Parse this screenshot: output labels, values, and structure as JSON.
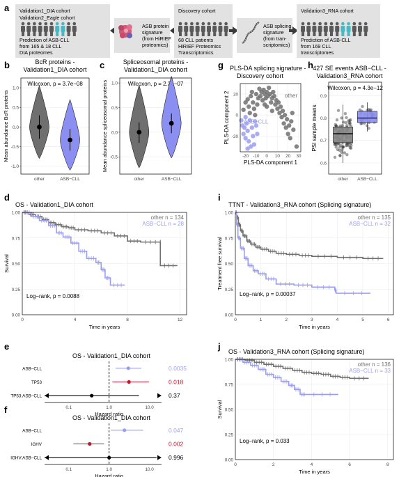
{
  "panel_letters": [
    "a",
    "b",
    "c",
    "d",
    "e",
    "f",
    "g",
    "h",
    "i",
    "j"
  ],
  "colors": {
    "asb": "#9b9ef0",
    "other": "#707070",
    "red": "#c2162e",
    "black": "#000000",
    "box_bg": "#e2e2e2",
    "violin_other": "#6f6f6f",
    "violin_asb": "#8c8ff2"
  },
  "schematic": {
    "left_box": {
      "title_lines": [
        "Validation1_DIA cohort",
        "Validation2_Eagle cohort"
      ],
      "text_lines": [
        "Prediction of ASB-CLL",
        "from 165 & 18 CLL",
        "DIA proteomes"
      ],
      "icon": "people-icon"
    },
    "protein_box": {
      "text_lines": [
        "ASB protein",
        "signature",
        "(from HiRIEF",
        "proteomics)"
      ],
      "icon": "protein-blob-icon"
    },
    "center_box": {
      "title": "Discovery cohort",
      "text_lines": [
        "68 CLL patients",
        "HiRIEF Proteomics",
        "Transcriptomics"
      ],
      "icon": "people-icon"
    },
    "splice_box": {
      "text_lines": [
        "ASB splicing",
        "signature",
        "(from tran-",
        "scriptomics)"
      ],
      "icon": "rna-strand-icon"
    },
    "right_box": {
      "title": "Validation3_RNA cohort",
      "text_lines": [
        "Prediction of ASB-CLL",
        "from 169 CLL",
        "transcriptomes"
      ],
      "icon": "people-icon"
    }
  },
  "chart_data": [
    {
      "id": "b",
      "type": "violin",
      "title_lines": [
        "BcR proteins -",
        "Validation1_DIA cohort"
      ],
      "annotation": "Wilcoxon, p = 3.7e−08",
      "ylabel": "Mean abundance BcR proteins",
      "categories": [
        "other",
        "ASB−CLL"
      ],
      "yticks": [
        "1.0",
        "0.5",
        "0.0",
        "-0.5",
        "-1.0"
      ],
      "ylim": [
        -1.2,
        1.25
      ],
      "median": [
        0.0,
        -0.33
      ],
      "lower": [
        -0.3,
        -0.6
      ],
      "upper": [
        0.3,
        -0.05
      ]
    },
    {
      "id": "c",
      "type": "violin",
      "title_lines": [
        "Spliceosomal proteins -",
        "Validation1_DIA cohort"
      ],
      "annotation": "Wilcoxon, p = 2.3e−07",
      "ylabel": "Mean abundance spliceosomal proteins",
      "categories": [
        "other",
        "ASB−CLL"
      ],
      "yticks": [
        "1.0",
        "0.5",
        "0.0",
        "-0.5"
      ],
      "ylim": [
        -0.85,
        1.1
      ],
      "median": [
        0.0,
        0.18
      ],
      "lower": [
        -0.22,
        -0.02
      ],
      "upper": [
        0.2,
        0.38
      ]
    },
    {
      "id": "g",
      "type": "scatter",
      "title_lines": [
        "PLS-DA splicing signature -",
        "Discovery cohort"
      ],
      "xlabel": "PLS-DA component 1",
      "ylabel": "PLS-DA component 2",
      "xticks": [
        "-20",
        "-10",
        "0",
        "10",
        "20",
        "30"
      ],
      "yticks": [
        "20",
        "0",
        "-20"
      ],
      "xlim": [
        -25,
        32
      ],
      "ylim": [
        -35,
        30
      ],
      "series": [
        {
          "name": "other",
          "points": [
            [
              -22,
              5
            ],
            [
              -20,
              12
            ],
            [
              -18,
              15
            ],
            [
              -17,
              8
            ],
            [
              -15,
              18
            ],
            [
              -14,
              22
            ],
            [
              -13,
              12
            ],
            [
              -12,
              6
            ],
            [
              -10,
              20
            ],
            [
              -9,
              10
            ],
            [
              -8,
              16
            ],
            [
              -7,
              25
            ],
            [
              -6,
              18
            ],
            [
              -5,
              22
            ],
            [
              -4,
              14
            ],
            [
              -3,
              24
            ],
            [
              -2,
              20
            ],
            [
              -1,
              16
            ],
            [
              0,
              22
            ],
            [
              1,
              18
            ],
            [
              2,
              26
            ],
            [
              3,
              20
            ],
            [
              4,
              12
            ],
            [
              5,
              16
            ],
            [
              6,
              22
            ],
            [
              7,
              18
            ],
            [
              8,
              10
            ],
            [
              9,
              14
            ],
            [
              10,
              6
            ],
            [
              11,
              12
            ],
            [
              12,
              2
            ],
            [
              13,
              8
            ],
            [
              14,
              -2
            ],
            [
              15,
              4
            ],
            [
              16,
              -8
            ],
            [
              17,
              0
            ],
            [
              18,
              -12
            ],
            [
              19,
              -4
            ],
            [
              20,
              -18
            ],
            [
              21,
              -10
            ],
            [
              -16,
              2
            ],
            [
              -11,
              0
            ],
            [
              0,
              8
            ],
            [
              5,
              4
            ],
            [
              22,
              -22
            ],
            [
              23,
              -6
            ],
            [
              25,
              -14
            ],
            [
              28,
              -30
            ],
            [
              24,
              2
            ],
            [
              -2,
              10
            ]
          ]
        },
        {
          "name": "ASB−CLL",
          "points": [
            [
              -24,
              -5
            ],
            [
              -23,
              -10
            ],
            [
              -22,
              -18
            ],
            [
              -21,
              -12
            ],
            [
              -20,
              -22
            ],
            [
              -19,
              -8
            ],
            [
              -18,
              -15
            ],
            [
              -17,
              -25
            ],
            [
              -16,
              -5
            ],
            [
              -15,
              -30
            ],
            [
              -14,
              -12
            ],
            [
              -13,
              -20
            ],
            [
              -12,
              -28
            ],
            [
              -11,
              -6
            ],
            [
              -10,
              -10
            ],
            [
              -9,
              -18
            ],
            [
              -20,
              -2
            ],
            [
              -18,
              -32
            ]
          ]
        }
      ]
    },
    {
      "id": "h",
      "type": "box",
      "title_lines": [
        "427 SE events ASB−CLL -",
        "Validation3_RNA cohort"
      ],
      "annotation": "Wilcoxon, p = 4.3e−12",
      "ylabel": "PSI sample means",
      "categories": [
        "other",
        "ASB−CLL"
      ],
      "yticks": [
        "0.9",
        "0.8",
        "0.7",
        "0.6"
      ],
      "ylim": [
        0.55,
        0.96
      ],
      "boxes": [
        {
          "q1": 0.69,
          "median": 0.73,
          "q3": 0.76,
          "lo": 0.6,
          "hi": 0.86
        },
        {
          "q1": 0.78,
          "median": 0.8,
          "q3": 0.83,
          "lo": 0.74,
          "hi": 0.87
        }
      ]
    },
    {
      "id": "d",
      "type": "line",
      "title": "OS - Validation1_DIA cohort",
      "xlabel": "Time in years",
      "ylabel": "Survival",
      "xticks": [
        "0",
        "4",
        "8",
        "12"
      ],
      "yticks": [
        "1.00",
        "0.75",
        "0.50",
        "0.25",
        "0.00"
      ],
      "xlim": [
        0,
        12.5
      ],
      "ylim": [
        0,
        1
      ],
      "legend": [
        "other n = 134",
        "ASB−CLL  n = 28"
      ],
      "annotation": "Log−rank, p = 0.0088",
      "series": [
        {
          "name": "other",
          "points": [
            [
              0,
              1
            ],
            [
              0.5,
              0.98
            ],
            [
              1,
              0.96
            ],
            [
              1.5,
              0.93
            ],
            [
              2,
              0.9
            ],
            [
              2.5,
              0.88
            ],
            [
              3,
              0.86
            ],
            [
              3.5,
              0.85
            ],
            [
              4,
              0.83
            ],
            [
              5,
              0.82
            ],
            [
              6,
              0.8
            ],
            [
              7,
              0.77
            ],
            [
              8,
              0.72
            ],
            [
              9,
              0.71
            ],
            [
              10.5,
              0.71
            ],
            [
              10.5,
              0.48
            ],
            [
              11.8,
              0.48
            ]
          ]
        },
        {
          "name": "ASB−CLL",
          "points": [
            [
              0,
              1
            ],
            [
              0.7,
              0.96
            ],
            [
              1.3,
              0.92
            ],
            [
              2,
              0.87
            ],
            [
              2.6,
              0.8
            ],
            [
              3.1,
              0.76
            ],
            [
              3.7,
              0.7
            ],
            [
              4.3,
              0.62
            ],
            [
              4.9,
              0.55
            ],
            [
              5.6,
              0.51
            ],
            [
              6,
              0.44
            ],
            [
              6.3,
              0.36
            ],
            [
              6.7,
              0.29
            ],
            [
              7.8,
              0.29
            ]
          ]
        }
      ]
    },
    {
      "id": "i",
      "type": "line",
      "title": "TTNT - Validation3_RNA cohort (Splicing signature)",
      "xlabel": "Time in years",
      "ylabel": "Treatment free survival",
      "xticks": [
        "0",
        "1",
        "2",
        "3",
        "4",
        "5",
        "6"
      ],
      "yticks": [
        "1.00",
        "0.75",
        "0.50",
        "0.25",
        "0.00"
      ],
      "xlim": [
        0,
        6.2
      ],
      "ylim": [
        0,
        1
      ],
      "legend": [
        "other n = 135",
        "ASB−CLL  n = 32"
      ],
      "annotation": "Log−rank, p = 0.00037",
      "series": [
        {
          "name": "other",
          "points": [
            [
              0,
              1
            ],
            [
              0.05,
              0.95
            ],
            [
              0.12,
              0.88
            ],
            [
              0.2,
              0.82
            ],
            [
              0.3,
              0.77
            ],
            [
              0.45,
              0.72
            ],
            [
              0.6,
              0.69
            ],
            [
              0.8,
              0.66
            ],
            [
              1,
              0.64
            ],
            [
              1.3,
              0.62
            ],
            [
              1.6,
              0.6
            ],
            [
              2,
              0.59
            ],
            [
              2.5,
              0.58
            ],
            [
              3,
              0.57
            ],
            [
              4,
              0.56
            ],
            [
              5,
              0.55
            ],
            [
              5.8,
              0.55
            ]
          ]
        },
        {
          "name": "ASB−CLL",
          "points": [
            [
              0,
              1
            ],
            [
              0.05,
              0.88
            ],
            [
              0.1,
              0.75
            ],
            [
              0.2,
              0.65
            ],
            [
              0.35,
              0.55
            ],
            [
              0.5,
              0.48
            ],
            [
              0.7,
              0.43
            ],
            [
              0.9,
              0.4
            ],
            [
              1.2,
              0.35
            ],
            [
              1.6,
              0.3
            ],
            [
              2.3,
              0.29
            ],
            [
              3,
              0.27
            ],
            [
              3.9,
              0.24
            ],
            [
              3.95,
              0.21
            ],
            [
              5.3,
              0.21
            ]
          ]
        }
      ]
    },
    {
      "id": "j",
      "type": "line",
      "title": "OS - Validation3_RNA cohort (Splicing signature)",
      "xlabel": "Time in years",
      "ylabel": "Survival",
      "xticks": [
        "0",
        "2",
        "4",
        "6",
        "8"
      ],
      "yticks": [
        "1.00",
        "0.75",
        "0.50",
        "0.25",
        "0.00"
      ],
      "xlim": [
        0,
        8.3
      ],
      "ylim": [
        0,
        1
      ],
      "legend": [
        "other n = 136",
        "ASB−CLL  n = 33"
      ],
      "annotation": "Log−rank, p = 0.033",
      "series": [
        {
          "name": "other",
          "points": [
            [
              0,
              1
            ],
            [
              0.5,
              0.99
            ],
            [
              1,
              0.97
            ],
            [
              1.5,
              0.95
            ],
            [
              2,
              0.93
            ],
            [
              2.5,
              0.91
            ],
            [
              3,
              0.89
            ],
            [
              3.5,
              0.87
            ],
            [
              4,
              0.86
            ],
            [
              4.5,
              0.85
            ],
            [
              5,
              0.83
            ],
            [
              5.5,
              0.82
            ],
            [
              6,
              0.81
            ],
            [
              7,
              0.81
            ]
          ]
        },
        {
          "name": "ASB−CLL",
          "points": [
            [
              0,
              1
            ],
            [
              0.4,
              0.97
            ],
            [
              0.8,
              0.94
            ],
            [
              1.2,
              0.9
            ],
            [
              1.6,
              0.85
            ],
            [
              2,
              0.82
            ],
            [
              2.4,
              0.78
            ],
            [
              2.8,
              0.74
            ],
            [
              3.1,
              0.7
            ],
            [
              3.4,
              0.65
            ],
            [
              3.7,
              0.65
            ],
            [
              5.4,
              0.65
            ]
          ]
        }
      ]
    },
    {
      "id": "e",
      "type": "forest",
      "title": "OS - Validation1_DIA cohort",
      "xlabel": "Hazard ratio",
      "xticks": [
        "0.1",
        "1.0",
        "10.0"
      ],
      "xlim_log10": [
        -1.6,
        1.3
      ],
      "rows": [
        {
          "label": "ASB−CLL",
          "hr": 3.0,
          "lo": 1.45,
          "hi": 6.3,
          "p": "0.0035",
          "color": "#9b9ef0"
        },
        {
          "label": "TP53",
          "hr": 3.1,
          "lo": 1.2,
          "hi": 9.8,
          "p": "0.018",
          "color": "#c2162e"
        },
        {
          "label": "TP53:ASB−CLL",
          "hr": 0.37,
          "lo": 0.025,
          "hi": 5.5,
          "p": "0.37",
          "color": "#000000",
          "arrows": true
        }
      ]
    },
    {
      "id": "f",
      "type": "forest",
      "title": "OS - Validation1_DIA cohort",
      "xlabel": "Hazard ratio",
      "xticks": [
        "0.1",
        "1.0",
        "10.0"
      ],
      "xlim_log10": [
        -1.6,
        1.3
      ],
      "rows": [
        {
          "label": "ASB−CLL",
          "hr": 2.4,
          "lo": 1.1,
          "hi": 7.0,
          "p": "0.047",
          "color": "#9b9ef0"
        },
        {
          "label": "IGHV",
          "hr": 0.33,
          "lo": 0.13,
          "hi": 0.75,
          "p": "0.002",
          "color": "#c2162e"
        },
        {
          "label": "IGHV:ASB−CLL",
          "hr": 1.0,
          "lo": 0.025,
          "hi": 15,
          "p": "0.996",
          "color": "#000000",
          "arrows": true
        }
      ]
    }
  ]
}
